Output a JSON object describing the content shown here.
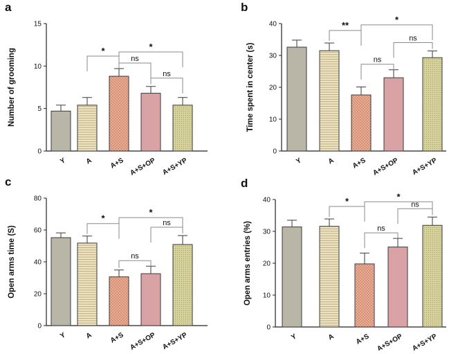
{
  "figure": {
    "panels": [
      {
        "letter": "a"
      },
      {
        "letter": "b"
      },
      {
        "letter": "c"
      },
      {
        "letter": "d"
      }
    ]
  },
  "colors": {
    "Y": "#b9b6a7",
    "A": "#efe4bf",
    "A+S": "#e9ad95",
    "A+S+OP": "#d9a3a6",
    "A+S+YP": "#d6d29d",
    "A_stripe": "#b8ad86",
    "AS_dots": "#b8694f",
    "ASYP_dots": "#a7a263",
    "bracket": "#8a8a8a",
    "outline": "#3a3a3a"
  },
  "chart_data": [
    {
      "type": "bar",
      "title": "",
      "xlabel": "",
      "ylabel": "Number of grooming",
      "categories": [
        "Y",
        "A",
        "A+S",
        "A+S+OP",
        "A+S+YP"
      ],
      "values": [
        4.7,
        5.4,
        8.8,
        6.8,
        5.4
      ],
      "errors": [
        0.7,
        0.9,
        0.9,
        0.8,
        0.9
      ],
      "ylim": [
        0,
        15
      ],
      "yticks": [
        0,
        5,
        10,
        15
      ],
      "grid": false,
      "annotations": [
        {
          "from": 1,
          "to": 2,
          "label": "*"
        },
        {
          "from": 2,
          "to": 4,
          "label": "*"
        },
        {
          "from": 2,
          "to": 3,
          "label": "ns"
        },
        {
          "from": 3,
          "to": 4,
          "label": "ns"
        }
      ]
    },
    {
      "type": "bar",
      "title": "",
      "xlabel": "",
      "ylabel": "Time spent in center (s)",
      "categories": [
        "Y",
        "A",
        "A+S",
        "A+S+OP",
        "A+S+YP"
      ],
      "values": [
        32.6,
        31.5,
        17.6,
        23.0,
        29.3
      ],
      "errors": [
        2.2,
        2.4,
        2.5,
        2.5,
        2.1
      ],
      "ylim": [
        0,
        40
      ],
      "yticks": [
        0,
        10,
        20,
        30,
        40
      ],
      "grid": false,
      "annotations": [
        {
          "from": 1,
          "to": 2,
          "label": "**"
        },
        {
          "from": 2,
          "to": 4,
          "label": "*"
        },
        {
          "from": 2,
          "to": 3,
          "label": "ns"
        },
        {
          "from": 3,
          "to": 4,
          "label": "ns"
        }
      ]
    },
    {
      "type": "bar",
      "title": "",
      "xlabel": "",
      "ylabel": "Open arms time (S)",
      "categories": [
        "Y",
        "A",
        "A+S",
        "A+S+OP",
        "A+S+YP"
      ],
      "values": [
        55.2,
        51.8,
        30.6,
        32.6,
        50.9
      ],
      "errors": [
        3.0,
        4.4,
        4.3,
        4.7,
        5.6
      ],
      "ylim": [
        0,
        80
      ],
      "yticks": [
        0,
        20,
        40,
        60,
        80
      ],
      "grid": false,
      "annotations": [
        {
          "from": 1,
          "to": 2,
          "label": "*"
        },
        {
          "from": 2,
          "to": 4,
          "label": "*"
        },
        {
          "from": 2,
          "to": 3,
          "label": "ns"
        },
        {
          "from": 3,
          "to": 4,
          "label": "ns"
        }
      ]
    },
    {
      "type": "bar",
      "title": "",
      "xlabel": "",
      "ylabel": "Open arms entries (%)",
      "categories": [
        "Y",
        "A",
        "A+S",
        "A+S+OP",
        "A+S+YP"
      ],
      "values": [
        31.4,
        31.6,
        19.8,
        25.1,
        31.9
      ],
      "errors": [
        2.1,
        2.3,
        3.4,
        2.7,
        2.6
      ],
      "ylim": [
        0,
        40
      ],
      "yticks": [
        0,
        10,
        20,
        30,
        40
      ],
      "grid": false,
      "annotations": [
        {
          "from": 1,
          "to": 2,
          "label": "*"
        },
        {
          "from": 2,
          "to": 4,
          "label": "*"
        },
        {
          "from": 2,
          "to": 3,
          "label": "ns"
        },
        {
          "from": 3,
          "to": 4,
          "label": "ns"
        }
      ]
    }
  ]
}
